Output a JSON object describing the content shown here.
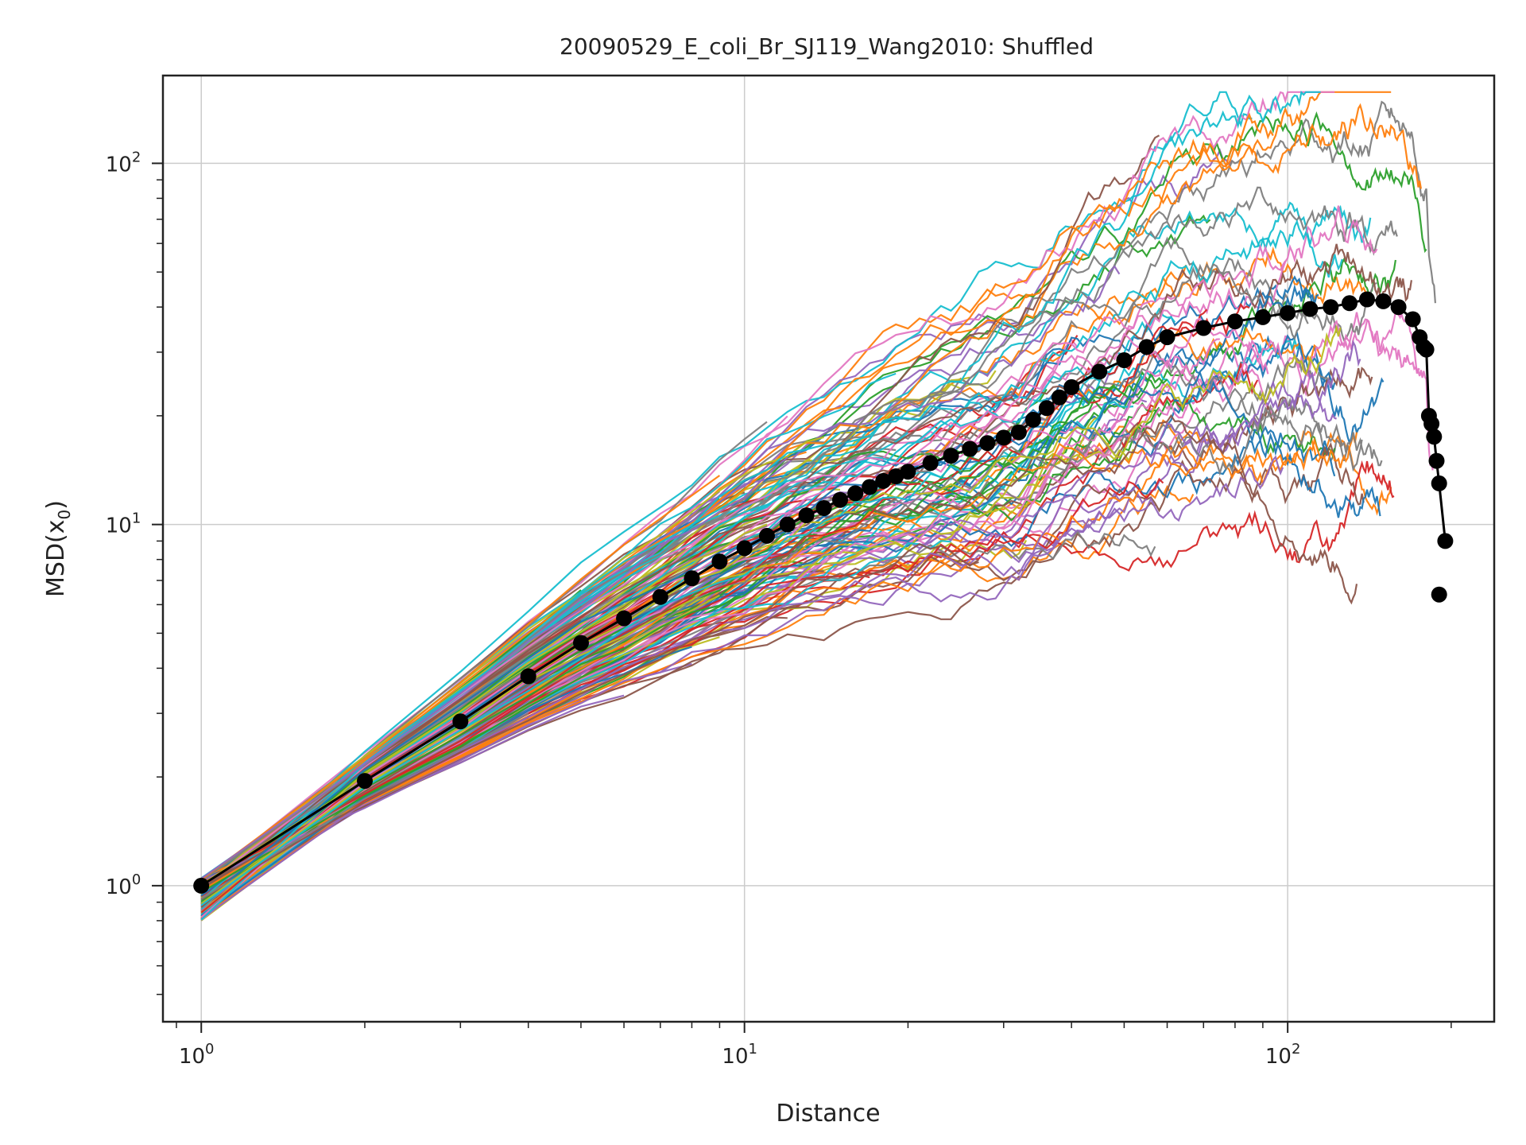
{
  "chart_data": {
    "type": "line",
    "title": "20090529_E_coli_Br_SJ119_Wang2010: Shuffled",
    "xlabel": "Distance",
    "ylabel": "MSD(x",
    "ylabel_sub": "0",
    "ylabel_end": ")",
    "xscale": "log",
    "yscale": "log",
    "xlim": [
      0.85,
      240
    ],
    "ylim": [
      0.42,
      175
    ],
    "grid": true,
    "x_ticks": [
      {
        "value": 1,
        "base": "10",
        "exp": "0"
      },
      {
        "value": 10,
        "base": "10",
        "exp": "1"
      },
      {
        "value": 100,
        "base": "10",
        "exp": "2"
      }
    ],
    "y_ticks": [
      {
        "value": 1,
        "base": "10",
        "exp": "0"
      },
      {
        "value": 10,
        "base": "10",
        "exp": "1"
      },
      {
        "value": 100,
        "base": "10",
        "exp": "2"
      }
    ],
    "individual_series_count": 200,
    "palette": [
      "#1f77b4",
      "#ff7f0e",
      "#2ca02c",
      "#d62728",
      "#9467bd",
      "#8c564b",
      "#e377c2",
      "#7f7f7f",
      "#bcbd22",
      "#17becf"
    ],
    "mean_series": {
      "color": "#000000",
      "x": [
        1,
        2,
        3,
        4,
        5,
        6,
        7,
        8,
        9,
        10,
        11,
        12,
        13,
        14,
        15,
        16,
        17,
        18,
        19,
        20,
        22,
        24,
        26,
        28,
        30,
        32,
        34,
        36,
        38,
        40,
        45,
        50,
        55,
        60,
        70,
        80,
        90,
        100,
        110,
        120,
        130,
        140,
        150,
        160,
        170,
        175,
        178,
        180,
        182,
        184,
        186,
        188,
        190,
        195
      ],
      "y": [
        1.0,
        1.95,
        2.85,
        3.8,
        4.7,
        5.5,
        6.3,
        7.1,
        7.9,
        8.6,
        9.3,
        10.0,
        10.6,
        11.1,
        11.7,
        12.2,
        12.7,
        13.2,
        13.6,
        14.0,
        14.8,
        15.5,
        16.2,
        16.8,
        17.4,
        18.0,
        19.5,
        21.0,
        22.5,
        24.0,
        26.5,
        28.5,
        31.0,
        33.0,
        35.0,
        36.5,
        37.5,
        38.5,
        39.5,
        40.0,
        41.0,
        42.0,
        41.5,
        40.0,
        37.0,
        33.0,
        31.0,
        30.5,
        20.0,
        19.0,
        17.5,
        15.0,
        13.0,
        9.0
      ]
    },
    "mean_series_tail_points": [
      {
        "x": 190,
        "y": 6.4
      }
    ]
  }
}
